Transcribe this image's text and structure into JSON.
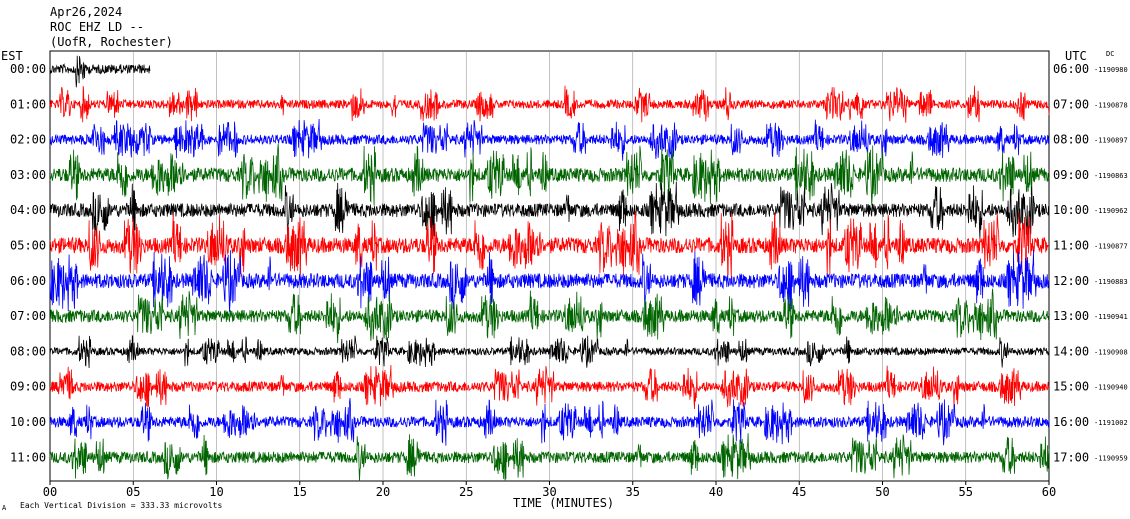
{
  "header": {
    "date": "Apr26,2024",
    "station": "ROC EHZ LD --",
    "location": "(UofR, Rochester)"
  },
  "labels": {
    "left_timezone": "EST",
    "right_timezone": "UTC",
    "dc_label": "DC",
    "x_axis_title": "TIME (MINUTES)",
    "footer_scale": "Each Vertical Division =  333.33 microvolts",
    "footer_mark": "A"
  },
  "chart_data": {
    "type": "line",
    "title": "",
    "xlabel": "TIME (MINUTES)",
    "xlim": [
      0,
      60
    ],
    "x_ticks": [
      "00",
      "05",
      "10",
      "15",
      "20",
      "25",
      "30",
      "35",
      "40",
      "45",
      "50",
      "55",
      "60"
    ],
    "rows": [
      {
        "local": "00:00",
        "utc": "06:00",
        "dc": "-1190980",
        "color": "#000000",
        "amplitude": 0.85,
        "partial_end_minute": 6.0
      },
      {
        "local": "01:00",
        "utc": "07:00",
        "dc": "-1190878",
        "color": "#ff0000",
        "amplitude": 0.8
      },
      {
        "local": "02:00",
        "utc": "08:00",
        "dc": "-1190897",
        "color": "#0000ff",
        "amplitude": 0.9
      },
      {
        "local": "03:00",
        "utc": "09:00",
        "dc": "-1190863",
        "color": "#006400",
        "amplitude": 1.3
      },
      {
        "local": "04:00",
        "utc": "10:00",
        "dc": "-1190962",
        "color": "#000000",
        "amplitude": 1.25
      },
      {
        "local": "05:00",
        "utc": "11:00",
        "dc": "-1190877",
        "color": "#ff0000",
        "amplitude": 1.45
      },
      {
        "local": "06:00",
        "utc": "12:00",
        "dc": "-1190883",
        "color": "#0000ff",
        "amplitude": 1.35
      },
      {
        "local": "07:00",
        "utc": "13:00",
        "dc": "-1190941",
        "color": "#006400",
        "amplitude": 1.15
      },
      {
        "local": "08:00",
        "utc": "14:00",
        "dc": "-1190908",
        "color": "#000000",
        "amplitude": 0.7
      },
      {
        "local": "09:00",
        "utc": "15:00",
        "dc": "-1190940",
        "color": "#ff0000",
        "amplitude": 0.95
      },
      {
        "local": "10:00",
        "utc": "16:00",
        "dc": "-1191002",
        "color": "#0000ff",
        "amplitude": 1.0
      },
      {
        "local": "11:00",
        "utc": "17:00",
        "dc": "-1190959",
        "color": "#006400",
        "amplitude": 1.05
      }
    ],
    "grid": true,
    "scale": "333.33 microvolts per vertical division"
  }
}
